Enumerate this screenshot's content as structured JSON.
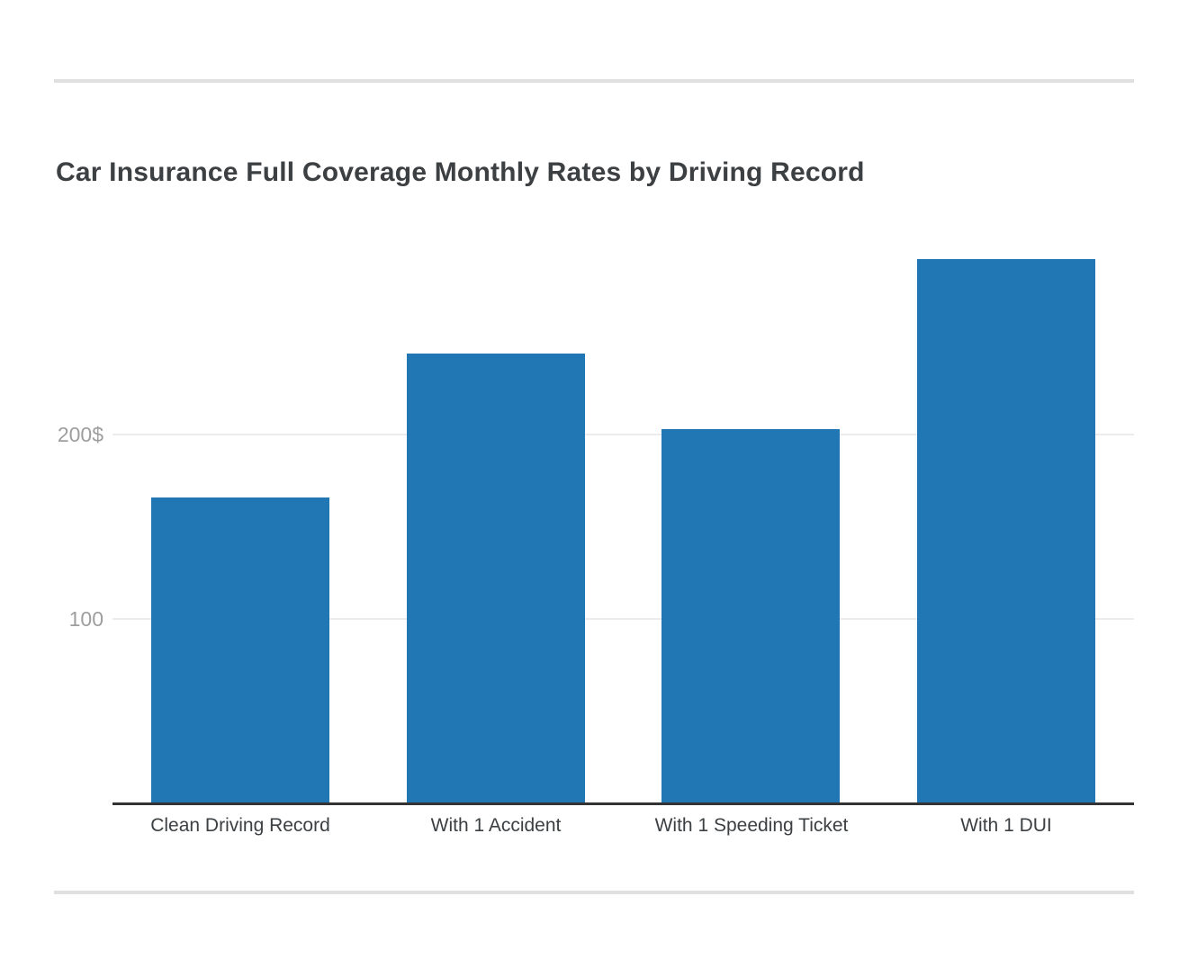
{
  "chart_data": {
    "type": "bar",
    "title": "Car Insurance Full Coverage Monthly Rates by Driving Record",
    "categories": [
      "Clean Driving Record",
      "With 1 Accident",
      "With 1 Speeding Ticket",
      "With 1 DUI"
    ],
    "values": [
      166,
      244,
      203,
      295
    ],
    "series_unit": "$ per month",
    "y_ticks": [
      {
        "value": 100,
        "label": "100"
      },
      {
        "value": 200,
        "label": "200$"
      }
    ],
    "ylim": [
      0,
      320
    ],
    "xlabel": "",
    "ylabel": "",
    "grid": "horizontal",
    "legend": "none",
    "bar_color": "#2177b4"
  },
  "colors": {
    "background": "#ffffff",
    "title_text": "#3c4043",
    "tick_text": "#9e9e9e",
    "category_text": "#3c4043",
    "gridline": "#ececec",
    "axis_line": "#333333",
    "separator": "#e0e0e0",
    "bar": "#2177b4"
  }
}
